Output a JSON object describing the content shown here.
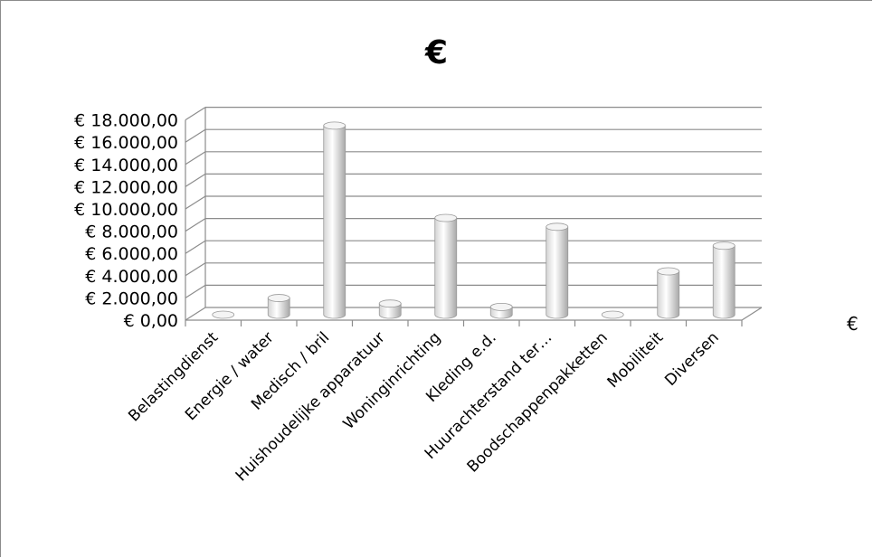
{
  "chart_data": {
    "type": "bar",
    "title": "€",
    "legend": [
      "€"
    ],
    "legend_position": "right",
    "categories": [
      "Belastingdienst",
      "Energie / water",
      "Medisch / bril",
      "Huishoudelijke apparatuur",
      "Woninginrichting",
      "Kleding e.d.",
      "Huurachterstand ter…",
      "Boodschappenpakketten",
      "Mobiliteit",
      "Diversen"
    ],
    "values": [
      0,
      1500,
      17000,
      1000,
      8700,
      700,
      7900,
      0,
      3900,
      6200
    ],
    "y_tick_labels": [
      "€ 0,00",
      "€ 2.000,00",
      "€ 4.000,00",
      "€ 6.000,00",
      "€ 8.000,00",
      "€ 10.000,00",
      "€ 12.000,00",
      "€ 14.000,00",
      "€ 16.000,00",
      "€ 18.000,00"
    ],
    "ylim": [
      0,
      18000
    ],
    "grid": true,
    "three_d": true,
    "colors": {
      "bar_light": "#ffffff",
      "bar_dark": "#bdbdbd",
      "grid": "#8c8c8c"
    }
  }
}
